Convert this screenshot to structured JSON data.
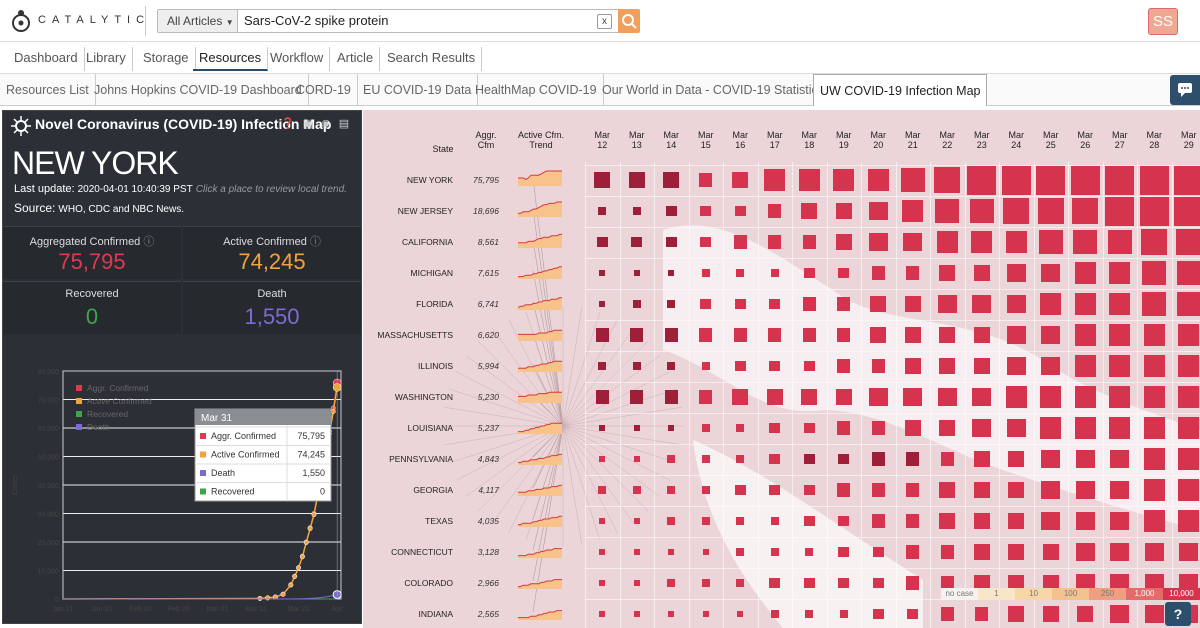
{
  "app": {
    "logo_text": "CATALYTIC",
    "user_initials": "SS"
  },
  "search": {
    "scope": "All Articles",
    "query": "Sars-CoV-2 spike protein",
    "clear_label": "x"
  },
  "nav_tabs": [
    {
      "label": "Dashboard"
    },
    {
      "label": "Library"
    },
    {
      "label": "Storage"
    },
    {
      "label": "Resources",
      "active": true
    },
    {
      "label": "Workflow"
    },
    {
      "label": "Article"
    },
    {
      "label": "Search Results"
    }
  ],
  "resource_tabs": [
    {
      "label": "Resources List"
    },
    {
      "label": "Johns Hopkins COVID-19 Dashboard"
    },
    {
      "label": "CORD-19"
    },
    {
      "label": "EU COVID-19 Data"
    },
    {
      "label": "HealthMap COVID-19"
    },
    {
      "label": "Our World in Data - COVID-19 Statistics"
    },
    {
      "label": "UW COVID-19 Infection Map",
      "active": true
    }
  ],
  "panel": {
    "title": "Novel Coronavirus (COVID-19) Infection Map",
    "state": "NEW YORK",
    "last_update_label": "Last update:",
    "last_update": "2020-04-01 10:40:39 PST",
    "last_update_hint": "Click a place to review local trend.",
    "source_label": "Source:",
    "source": "WHO, CDC and NBC News.",
    "stats": {
      "aggr_label": "Aggregated Confirmed",
      "aggr": "75,795",
      "active_label": "Active Confirmed",
      "active": "74,245",
      "recovered_label": "Recovered",
      "recovered": "0",
      "death_label": "Death",
      "death": "1,550"
    },
    "colors": {
      "aggr": "#e0394f",
      "active": "#f2a43a",
      "recovered": "#3fa54a",
      "death": "#7c6bd6"
    }
  },
  "chart_data": {
    "type": "line",
    "ylabel": "Cases",
    "ylim": [
      0,
      80000
    ],
    "yticks": [
      "0",
      "10,000",
      "20,000",
      "30,000",
      "40,000",
      "50,000",
      "60,000",
      "70,000",
      "80,000"
    ],
    "xticks": [
      "Jan 21",
      "Jan 31",
      "Feb 10",
      "Feb 20",
      "Mar 01",
      "Mar 11",
      "Mar 22",
      "Apr"
    ],
    "x": [
      "Mar 11",
      "Mar 13",
      "Mar 15",
      "Mar 17",
      "Mar 19",
      "Mar 20",
      "Mar 21",
      "Mar 22",
      "Mar 23",
      "Mar 24",
      "Mar 25",
      "Mar 26",
      "Mar 27",
      "Mar 28",
      "Mar 29",
      "Mar 30",
      "Mar 31"
    ],
    "series": [
      {
        "name": "Aggr. Confirmed",
        "values": [
          200,
          400,
          700,
          1700,
          5000,
          8000,
          11000,
          15000,
          20000,
          25000,
          30000,
          37000,
          44000,
          52000,
          59000,
          67000,
          75795
        ]
      },
      {
        "name": "Active Confirmed",
        "values": [
          200,
          400,
          700,
          1650,
          4900,
          7900,
          10900,
          14800,
          19800,
          24700,
          29600,
          36500,
          43400,
          51200,
          58000,
          65800,
          74245
        ]
      },
      {
        "name": "Recovered",
        "values": [
          0,
          0,
          0,
          0,
          0,
          0,
          0,
          0,
          0,
          0,
          0,
          0,
          0,
          0,
          0,
          0,
          0
        ]
      },
      {
        "name": "Death",
        "values": [
          0,
          0,
          0,
          10,
          20,
          30,
          60,
          100,
          150,
          210,
          280,
          380,
          520,
          720,
          960,
          1220,
          1550
        ]
      }
    ],
    "tooltip": {
      "title": "Mar 31",
      "rows": [
        {
          "label": "Aggr. Confirmed",
          "value": "75,795"
        },
        {
          "label": "Active Confirmed",
          "value": "74,245"
        },
        {
          "label": "Death",
          "value": "1,550"
        },
        {
          "label": "Recovered",
          "value": "0"
        }
      ]
    }
  },
  "grid": {
    "col_state": "State",
    "col_aggr": "Aggr. Cfm",
    "col_trend": "Active Cfm. Trend",
    "month": "Mar",
    "days": [
      "12",
      "13",
      "14",
      "15",
      "16",
      "17",
      "18",
      "19",
      "20",
      "21",
      "22",
      "23",
      "24",
      "25",
      "26",
      "27",
      "28",
      "29"
    ],
    "rows": [
      {
        "state": "NEW YORK",
        "aggr": "75,795",
        "sizes": [
          5,
          5,
          5,
          4,
          5,
          7,
          7,
          7,
          7,
          8,
          9,
          10,
          10,
          10,
          10,
          10,
          10,
          10
        ]
      },
      {
        "state": "NEW JERSEY",
        "aggr": "18,696",
        "sizes": [
          2,
          2,
          3,
          3,
          3,
          4,
          5,
          5,
          6,
          7,
          8,
          8,
          9,
          9,
          9,
          10,
          10,
          10
        ]
      },
      {
        "state": "CALIFORNIA",
        "aggr": "8,561",
        "sizes": [
          3,
          3,
          3,
          3,
          4,
          4,
          4,
          5,
          6,
          6,
          7,
          7,
          7,
          8,
          8,
          8,
          9,
          9
        ]
      },
      {
        "state": "MICHIGAN",
        "aggr": "7,615",
        "sizes": [
          1,
          1,
          1,
          2,
          2,
          2,
          3,
          3,
          4,
          4,
          5,
          5,
          6,
          6,
          7,
          7,
          8,
          8
        ]
      },
      {
        "state": "FLORIDA",
        "aggr": "6,741",
        "sizes": [
          1,
          2,
          2,
          3,
          3,
          3,
          4,
          4,
          5,
          5,
          6,
          6,
          6,
          7,
          7,
          7,
          8,
          8
        ]
      },
      {
        "state": "MASSACHUSETTS",
        "aggr": "6,620",
        "sizes": [
          4,
          4,
          4,
          4,
          4,
          4,
          4,
          4,
          5,
          5,
          5,
          5,
          6,
          6,
          7,
          7,
          7,
          7
        ]
      },
      {
        "state": "ILLINOIS",
        "aggr": "5,994",
        "sizes": [
          2,
          2,
          2,
          2,
          3,
          3,
          3,
          4,
          4,
          5,
          5,
          5,
          6,
          6,
          7,
          7,
          7,
          7
        ]
      },
      {
        "state": "WASHINGTON",
        "aggr": "5,230",
        "sizes": [
          4,
          4,
          4,
          4,
          5,
          5,
          5,
          5,
          6,
          6,
          6,
          6,
          7,
          7,
          7,
          7,
          7,
          7
        ]
      },
      {
        "state": "LOUISIANA",
        "aggr": "5,237",
        "sizes": [
          1,
          1,
          1,
          2,
          2,
          3,
          3,
          4,
          4,
          5,
          5,
          6,
          6,
          7,
          7,
          7,
          7,
          7
        ]
      },
      {
        "state": "PENNSYLVANIA",
        "aggr": "4,843",
        "sizes": [
          1,
          1,
          2,
          2,
          2,
          3,
          3,
          3,
          4,
          4,
          4,
          5,
          5,
          6,
          6,
          6,
          7,
          7
        ]
      },
      {
        "state": "GEORGIA",
        "aggr": "4,117",
        "sizes": [
          2,
          2,
          2,
          2,
          3,
          3,
          3,
          4,
          4,
          4,
          5,
          5,
          5,
          6,
          6,
          6,
          7,
          7
        ]
      },
      {
        "state": "TEXAS",
        "aggr": "4,035",
        "sizes": [
          1,
          1,
          2,
          2,
          2,
          2,
          3,
          3,
          4,
          4,
          5,
          5,
          5,
          6,
          6,
          6,
          7,
          7
        ]
      },
      {
        "state": "CONNECTICUT",
        "aggr": "3,128",
        "sizes": [
          1,
          1,
          1,
          1,
          2,
          2,
          2,
          3,
          3,
          4,
          4,
          5,
          5,
          5,
          6,
          6,
          6,
          6
        ]
      },
      {
        "state": "COLORADO",
        "aggr": "2,966",
        "sizes": [
          1,
          1,
          2,
          2,
          2,
          3,
          3,
          3,
          3,
          4,
          4,
          5,
          5,
          5,
          6,
          6,
          6,
          6
        ]
      },
      {
        "state": "INDIANA",
        "aggr": "2,565",
        "sizes": [
          1,
          1,
          1,
          1,
          1,
          2,
          2,
          2,
          3,
          3,
          4,
          4,
          5,
          5,
          5,
          6,
          6,
          6
        ]
      }
    ],
    "legend": [
      "no case",
      "1",
      "10",
      "100",
      "250",
      "1,000",
      "10,000"
    ]
  }
}
